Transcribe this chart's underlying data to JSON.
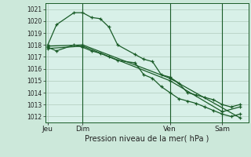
{
  "background_color": "#cce8da",
  "plot_bg_color": "#d8f0e8",
  "grid_color": "#b0ccbc",
  "line_color": "#1a5c28",
  "xlabel": "Pression niveau de la mer( hPa )",
  "ylim": [
    1011.5,
    1021.5
  ],
  "yticks": [
    1012,
    1013,
    1014,
    1015,
    1016,
    1017,
    1018,
    1019,
    1020,
    1021
  ],
  "xtick_labels": [
    "Jeu",
    "Dim",
    "Ven",
    "Sam"
  ],
  "xtick_positions": [
    0,
    4,
    14,
    20
  ],
  "xlim": [
    -0.3,
    23
  ],
  "vline_positions": [
    4,
    14,
    20
  ],
  "line1_x": [
    0,
    1,
    3,
    4,
    5,
    6,
    7,
    8,
    10,
    11,
    12,
    13,
    14,
    15,
    16,
    17,
    18,
    19,
    20,
    21,
    22
  ],
  "line1_y": [
    1018.0,
    1019.7,
    1020.7,
    1020.7,
    1020.3,
    1020.2,
    1019.5,
    1018.0,
    1017.2,
    1016.8,
    1016.6,
    1015.5,
    1015.3,
    1014.8,
    1014.0,
    1013.8,
    1013.6,
    1013.4,
    1013.0,
    1012.8,
    1013.0
  ],
  "line2_x": [
    0,
    1,
    3,
    4,
    5,
    6,
    7,
    8,
    10,
    11,
    12,
    13,
    14,
    15,
    16,
    17,
    18,
    19,
    20,
    21,
    22
  ],
  "line2_y": [
    1017.8,
    1017.5,
    1018.0,
    1017.8,
    1017.5,
    1017.3,
    1017.0,
    1016.7,
    1016.5,
    1015.5,
    1015.2,
    1014.5,
    1014.0,
    1013.5,
    1013.3,
    1013.1,
    1012.8,
    1012.5,
    1012.2,
    1012.0,
    1012.2
  ],
  "line3_x": [
    0,
    4,
    14,
    22
  ],
  "line3_y": [
    1017.9,
    1018.0,
    1015.2,
    1011.9
  ],
  "line4_x": [
    0,
    4,
    14,
    20,
    22
  ],
  "line4_y": [
    1017.7,
    1017.9,
    1015.0,
    1012.4,
    1012.8
  ],
  "figsize": [
    3.2,
    2.0
  ],
  "dpi": 100
}
